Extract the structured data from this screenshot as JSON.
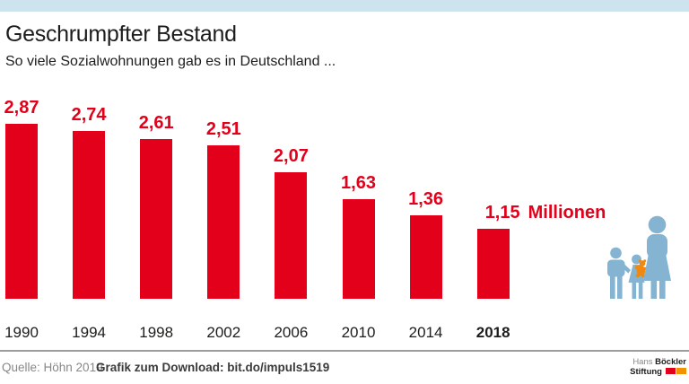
{
  "chart_data": {
    "type": "bar",
    "title": "Geschrumpfter Bestand",
    "subtitle": "So viele Sozialwohnungen gab es in Deutschland ...",
    "categories": [
      "1990",
      "1994",
      "1998",
      "2002",
      "2006",
      "2010",
      "2014",
      "2018"
    ],
    "values": [
      2.87,
      2.74,
      2.61,
      2.51,
      2.07,
      1.63,
      1.36,
      1.15
    ],
    "value_labels": [
      "2,87",
      "2,74",
      "2,61",
      "2,51",
      "2,07",
      "1,63",
      "1,36",
      "1,15"
    ],
    "unit_label": "Millionen",
    "unit_label_on_last": true,
    "highlight_category": "2018",
    "bar_color": "#e2001a",
    "ylim": [
      0,
      3
    ],
    "grid": false,
    "legend": false
  },
  "footer": {
    "source": "Quelle: Höhn 2019",
    "download": "Grafik zum Download: bit.do/impuls1519"
  },
  "logo": {
    "line1_light": "Hans",
    "line1_bold": "Böckler",
    "line2_bold": "Stiftung"
  },
  "icons": {
    "family_icon": "family-with-two-children-and-teddy-bear"
  },
  "colors": {
    "accent_red": "#e2001a",
    "top_bar_blue": "#cde4ee",
    "figure_blue": "#84b4d2",
    "figure_orange": "#f0890f",
    "logo_red": "#e2001a",
    "logo_orange": "#f39200",
    "divider_gray": "#9d9d9c",
    "source_gray": "#878787"
  }
}
